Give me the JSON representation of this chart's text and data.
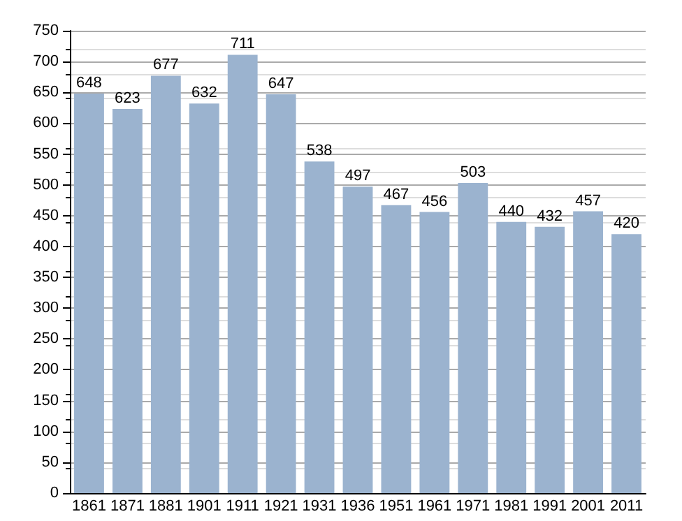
{
  "chart_data": {
    "type": "bar",
    "categories": [
      "1861",
      "1871",
      "1881",
      "1901",
      "1911",
      "1921",
      "1931",
      "1936",
      "1951",
      "1961",
      "1971",
      "1981",
      "1991",
      "2001",
      "2011"
    ],
    "values": [
      648,
      623,
      677,
      632,
      711,
      647,
      538,
      497,
      467,
      456,
      503,
      440,
      432,
      457,
      420
    ],
    "color": "#9bb3cf",
    "ylim": [
      0,
      750
    ],
    "yticks": [
      0,
      50,
      100,
      150,
      200,
      250,
      300,
      350,
      400,
      450,
      500,
      550,
      600,
      650,
      700,
      750
    ],
    "grid": true,
    "data_labels": true
  }
}
